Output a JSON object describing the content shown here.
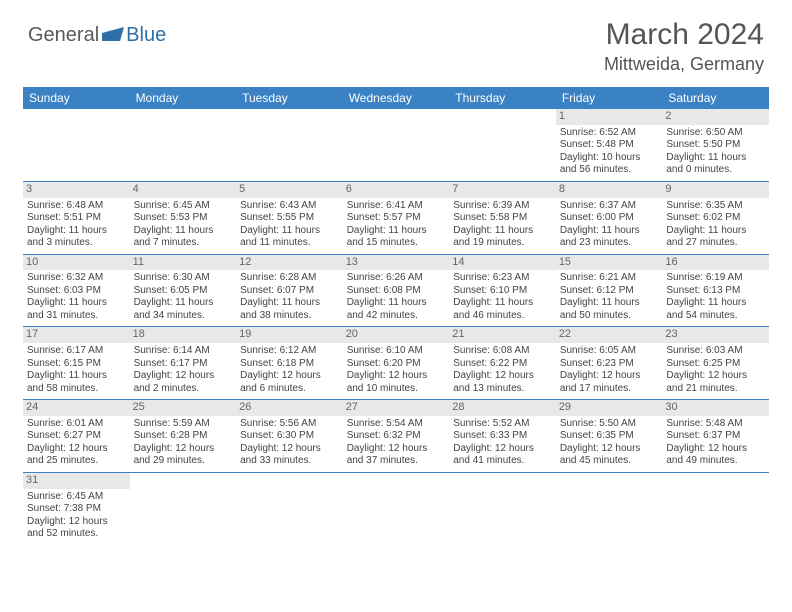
{
  "logo": {
    "text1": "General",
    "text2": "Blue"
  },
  "title": "March 2024",
  "location": "Mittweida, Germany",
  "colors": {
    "header_bg": "#3a82c4",
    "daynum_bg": "#e8e8e8",
    "rule": "#3a82c4"
  },
  "weekdays": [
    "Sunday",
    "Monday",
    "Tuesday",
    "Wednesday",
    "Thursday",
    "Friday",
    "Saturday"
  ],
  "weeks": [
    [
      {
        "n": "",
        "sr": "",
        "ss": "",
        "dl": ""
      },
      {
        "n": "",
        "sr": "",
        "ss": "",
        "dl": ""
      },
      {
        "n": "",
        "sr": "",
        "ss": "",
        "dl": ""
      },
      {
        "n": "",
        "sr": "",
        "ss": "",
        "dl": ""
      },
      {
        "n": "",
        "sr": "",
        "ss": "",
        "dl": ""
      },
      {
        "n": "1",
        "sr": "Sunrise: 6:52 AM",
        "ss": "Sunset: 5:48 PM",
        "dl": "Daylight: 10 hours and 56 minutes."
      },
      {
        "n": "2",
        "sr": "Sunrise: 6:50 AM",
        "ss": "Sunset: 5:50 PM",
        "dl": "Daylight: 11 hours and 0 minutes."
      }
    ],
    [
      {
        "n": "3",
        "sr": "Sunrise: 6:48 AM",
        "ss": "Sunset: 5:51 PM",
        "dl": "Daylight: 11 hours and 3 minutes."
      },
      {
        "n": "4",
        "sr": "Sunrise: 6:45 AM",
        "ss": "Sunset: 5:53 PM",
        "dl": "Daylight: 11 hours and 7 minutes."
      },
      {
        "n": "5",
        "sr": "Sunrise: 6:43 AM",
        "ss": "Sunset: 5:55 PM",
        "dl": "Daylight: 11 hours and 11 minutes."
      },
      {
        "n": "6",
        "sr": "Sunrise: 6:41 AM",
        "ss": "Sunset: 5:57 PM",
        "dl": "Daylight: 11 hours and 15 minutes."
      },
      {
        "n": "7",
        "sr": "Sunrise: 6:39 AM",
        "ss": "Sunset: 5:58 PM",
        "dl": "Daylight: 11 hours and 19 minutes."
      },
      {
        "n": "8",
        "sr": "Sunrise: 6:37 AM",
        "ss": "Sunset: 6:00 PM",
        "dl": "Daylight: 11 hours and 23 minutes."
      },
      {
        "n": "9",
        "sr": "Sunrise: 6:35 AM",
        "ss": "Sunset: 6:02 PM",
        "dl": "Daylight: 11 hours and 27 minutes."
      }
    ],
    [
      {
        "n": "10",
        "sr": "Sunrise: 6:32 AM",
        "ss": "Sunset: 6:03 PM",
        "dl": "Daylight: 11 hours and 31 minutes."
      },
      {
        "n": "11",
        "sr": "Sunrise: 6:30 AM",
        "ss": "Sunset: 6:05 PM",
        "dl": "Daylight: 11 hours and 34 minutes."
      },
      {
        "n": "12",
        "sr": "Sunrise: 6:28 AM",
        "ss": "Sunset: 6:07 PM",
        "dl": "Daylight: 11 hours and 38 minutes."
      },
      {
        "n": "13",
        "sr": "Sunrise: 6:26 AM",
        "ss": "Sunset: 6:08 PM",
        "dl": "Daylight: 11 hours and 42 minutes."
      },
      {
        "n": "14",
        "sr": "Sunrise: 6:23 AM",
        "ss": "Sunset: 6:10 PM",
        "dl": "Daylight: 11 hours and 46 minutes."
      },
      {
        "n": "15",
        "sr": "Sunrise: 6:21 AM",
        "ss": "Sunset: 6:12 PM",
        "dl": "Daylight: 11 hours and 50 minutes."
      },
      {
        "n": "16",
        "sr": "Sunrise: 6:19 AM",
        "ss": "Sunset: 6:13 PM",
        "dl": "Daylight: 11 hours and 54 minutes."
      }
    ],
    [
      {
        "n": "17",
        "sr": "Sunrise: 6:17 AM",
        "ss": "Sunset: 6:15 PM",
        "dl": "Daylight: 11 hours and 58 minutes."
      },
      {
        "n": "18",
        "sr": "Sunrise: 6:14 AM",
        "ss": "Sunset: 6:17 PM",
        "dl": "Daylight: 12 hours and 2 minutes."
      },
      {
        "n": "19",
        "sr": "Sunrise: 6:12 AM",
        "ss": "Sunset: 6:18 PM",
        "dl": "Daylight: 12 hours and 6 minutes."
      },
      {
        "n": "20",
        "sr": "Sunrise: 6:10 AM",
        "ss": "Sunset: 6:20 PM",
        "dl": "Daylight: 12 hours and 10 minutes."
      },
      {
        "n": "21",
        "sr": "Sunrise: 6:08 AM",
        "ss": "Sunset: 6:22 PM",
        "dl": "Daylight: 12 hours and 13 minutes."
      },
      {
        "n": "22",
        "sr": "Sunrise: 6:05 AM",
        "ss": "Sunset: 6:23 PM",
        "dl": "Daylight: 12 hours and 17 minutes."
      },
      {
        "n": "23",
        "sr": "Sunrise: 6:03 AM",
        "ss": "Sunset: 6:25 PM",
        "dl": "Daylight: 12 hours and 21 minutes."
      }
    ],
    [
      {
        "n": "24",
        "sr": "Sunrise: 6:01 AM",
        "ss": "Sunset: 6:27 PM",
        "dl": "Daylight: 12 hours and 25 minutes."
      },
      {
        "n": "25",
        "sr": "Sunrise: 5:59 AM",
        "ss": "Sunset: 6:28 PM",
        "dl": "Daylight: 12 hours and 29 minutes."
      },
      {
        "n": "26",
        "sr": "Sunrise: 5:56 AM",
        "ss": "Sunset: 6:30 PM",
        "dl": "Daylight: 12 hours and 33 minutes."
      },
      {
        "n": "27",
        "sr": "Sunrise: 5:54 AM",
        "ss": "Sunset: 6:32 PM",
        "dl": "Daylight: 12 hours and 37 minutes."
      },
      {
        "n": "28",
        "sr": "Sunrise: 5:52 AM",
        "ss": "Sunset: 6:33 PM",
        "dl": "Daylight: 12 hours and 41 minutes."
      },
      {
        "n": "29",
        "sr": "Sunrise: 5:50 AM",
        "ss": "Sunset: 6:35 PM",
        "dl": "Daylight: 12 hours and 45 minutes."
      },
      {
        "n": "30",
        "sr": "Sunrise: 5:48 AM",
        "ss": "Sunset: 6:37 PM",
        "dl": "Daylight: 12 hours and 49 minutes."
      }
    ],
    [
      {
        "n": "31",
        "sr": "Sunrise: 6:45 AM",
        "ss": "Sunset: 7:38 PM",
        "dl": "Daylight: 12 hours and 52 minutes."
      },
      {
        "n": "",
        "sr": "",
        "ss": "",
        "dl": ""
      },
      {
        "n": "",
        "sr": "",
        "ss": "",
        "dl": ""
      },
      {
        "n": "",
        "sr": "",
        "ss": "",
        "dl": ""
      },
      {
        "n": "",
        "sr": "",
        "ss": "",
        "dl": ""
      },
      {
        "n": "",
        "sr": "",
        "ss": "",
        "dl": ""
      },
      {
        "n": "",
        "sr": "",
        "ss": "",
        "dl": ""
      }
    ]
  ]
}
